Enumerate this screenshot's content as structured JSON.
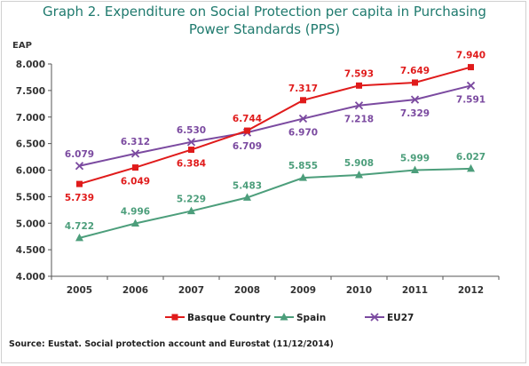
{
  "chart_data": {
    "type": "line",
    "title_line1": "Graph 2. Expenditure on Social Protection per capita in Purchasing",
    "title_line2": "Power Standards (PPS)",
    "ylabel": "EAP",
    "xlabel": "",
    "categories": [
      "2005",
      "2006",
      "2007",
      "2008",
      "2009",
      "2010",
      "2011",
      "2012"
    ],
    "ylim": [
      4000,
      8000
    ],
    "yticks": [
      4000,
      4500,
      5000,
      5500,
      6000,
      6500,
      7000,
      7500,
      8000
    ],
    "ytick_labels": [
      "4.000",
      "4.500",
      "5.000",
      "5.500",
      "6.000",
      "6.500",
      "7.000",
      "7.500",
      "8.000"
    ],
    "grid": false,
    "legend_position": "bottom",
    "series": [
      {
        "name": "Basque Country",
        "color": "#e01b1b",
        "marker": "square",
        "values": [
          5739,
          6049,
          6384,
          6744,
          7317,
          7593,
          7649,
          7940
        ],
        "labels": [
          "5.739",
          "6.049",
          "6.384",
          "6.744",
          "7.317",
          "7.593",
          "7.649",
          "7.940"
        ],
        "label_side": [
          "below",
          "below",
          "below",
          "above",
          "above",
          "above",
          "above",
          "above"
        ]
      },
      {
        "name": "Spain",
        "color": "#4c9e7b",
        "marker": "triangle",
        "values": [
          4722,
          4996,
          5229,
          5483,
          5855,
          5908,
          5999,
          6027
        ],
        "labels": [
          "4.722",
          "4.996",
          "5.229",
          "5.483",
          "5.855",
          "5.908",
          "5.999",
          "6.027"
        ],
        "label_side": [
          "above",
          "above",
          "above",
          "above",
          "above",
          "above",
          "above",
          "above"
        ]
      },
      {
        "name": "EU27",
        "color": "#7b4aa0",
        "marker": "x",
        "values": [
          6079,
          6312,
          6530,
          6709,
          6970,
          7218,
          7329,
          7591
        ],
        "labels": [
          "6.079",
          "6.312",
          "6.530",
          "6.709",
          "6.970",
          "7.218",
          "7.329",
          "7.591"
        ],
        "label_side": [
          "above",
          "above",
          "above",
          "below",
          "below",
          "below",
          "below",
          "below"
        ]
      }
    ]
  },
  "source": "Source: Eustat. Social protection account and Eurostat (11/12/2014)",
  "colors": {
    "title": "#1f7a6e",
    "axis": "#333333"
  }
}
